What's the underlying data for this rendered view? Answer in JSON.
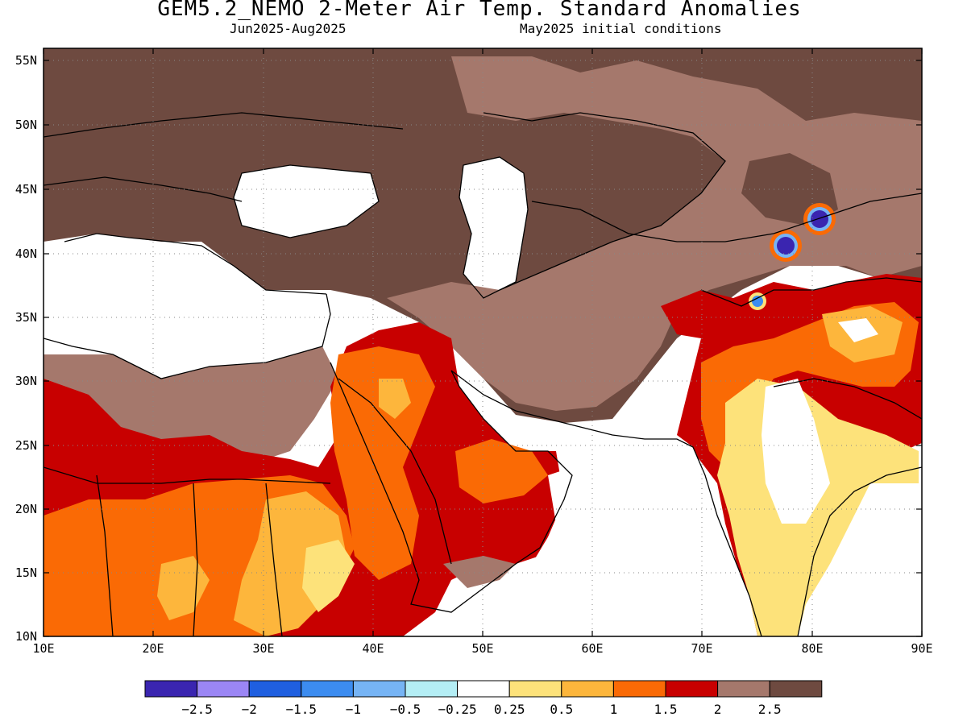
{
  "title": "GEM5.2_NEMO 2-Meter Air Temp. Standard Anomalies",
  "period": "Jun2025-Aug2025",
  "initial_conditions": "May2025 initial conditions",
  "map": {
    "lon_range": [
      10,
      90
    ],
    "lat_range": [
      10,
      56
    ],
    "lon_ticks": [
      "10E",
      "20E",
      "30E",
      "40E",
      "50E",
      "60E",
      "70E",
      "80E",
      "90E"
    ],
    "lat_ticks": [
      "55N",
      "50N",
      "45N",
      "40N",
      "35N",
      "30N",
      "25N",
      "20N",
      "15N",
      "10N"
    ],
    "grid": true
  },
  "colorbar": {
    "colors": [
      "#3a25b0",
      "#9b86f5",
      "#1f5fe0",
      "#3c8cf0",
      "#76b4f5",
      "#b4eef5",
      "#ffffff",
      "#fde27a",
      "#fdb63c",
      "#fa6a05",
      "#c80000",
      "#a5786c",
      "#6e4a40"
    ],
    "labels": [
      "−2.5",
      "−2",
      "−1.5",
      "−1",
      "−0.5",
      "−0.25",
      "0.25",
      "0.5",
      "1",
      "1.5",
      "2",
      "2.5"
    ]
  }
}
